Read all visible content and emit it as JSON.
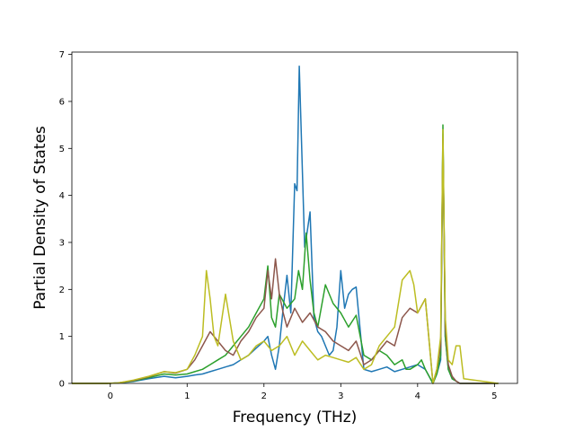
{
  "chart_data": {
    "type": "line",
    "title": "",
    "xlabel": "Frequency (THz)",
    "ylabel": "Partial Density of States",
    "xlim": [
      -0.5,
      5.3
    ],
    "ylim": [
      0,
      7.05
    ],
    "xticks": [
      0,
      1,
      2,
      3,
      4,
      5
    ],
    "yticks": [
      0,
      1,
      2,
      3,
      4,
      5,
      6,
      7
    ],
    "grid": false,
    "legend": "none",
    "series": [
      {
        "color": "#1f77b4",
        "x": [
          -0.5,
          -0.05,
          0.1,
          0.3,
          0.5,
          0.7,
          0.85,
          1.0,
          1.1,
          1.2,
          1.3,
          1.4,
          1.5,
          1.6,
          1.7,
          1.8,
          1.9,
          2.0,
          2.05,
          2.1,
          2.15,
          2.2,
          2.25,
          2.3,
          2.35,
          2.4,
          2.43,
          2.46,
          2.5,
          2.53,
          2.56,
          2.6,
          2.65,
          2.7,
          2.75,
          2.8,
          2.85,
          2.9,
          2.95,
          3.0,
          3.05,
          3.1,
          3.15,
          3.2,
          3.3,
          3.4,
          3.5,
          3.6,
          3.7,
          3.8,
          3.9,
          4.0,
          4.1,
          4.2,
          4.25,
          4.3,
          4.33,
          4.36,
          4.4,
          4.45,
          4.5,
          4.55,
          4.6,
          5.05
        ],
        "y": [
          0.0,
          0.0,
          0.01,
          0.04,
          0.1,
          0.15,
          0.12,
          0.15,
          0.18,
          0.2,
          0.25,
          0.3,
          0.35,
          0.4,
          0.5,
          0.6,
          0.75,
          0.9,
          1.0,
          0.6,
          0.3,
          0.8,
          1.6,
          2.3,
          1.5,
          4.25,
          4.1,
          6.75,
          4.5,
          2.9,
          3.2,
          3.65,
          1.4,
          1.1,
          1.0,
          0.8,
          0.6,
          0.7,
          1.2,
          2.4,
          1.6,
          1.9,
          2.0,
          2.05,
          0.3,
          0.25,
          0.3,
          0.35,
          0.25,
          0.3,
          0.35,
          0.4,
          0.3,
          0.0,
          0.2,
          0.5,
          5.3,
          1.0,
          0.3,
          0.1,
          0.05,
          0.0,
          0.0,
          0.0
        ]
      },
      {
        "color": "#2ca02c",
        "x": [
          -0.5,
          -0.05,
          0.1,
          0.3,
          0.5,
          0.7,
          0.85,
          1.0,
          1.1,
          1.2,
          1.3,
          1.4,
          1.5,
          1.6,
          1.7,
          1.8,
          1.9,
          2.0,
          2.05,
          2.1,
          2.15,
          2.2,
          2.3,
          2.4,
          2.45,
          2.5,
          2.55,
          2.6,
          2.65,
          2.7,
          2.8,
          2.9,
          3.0,
          3.1,
          3.2,
          3.3,
          3.4,
          3.5,
          3.6,
          3.7,
          3.8,
          3.85,
          3.9,
          4.0,
          4.05,
          4.1,
          4.2,
          4.25,
          4.3,
          4.33,
          4.36,
          4.4,
          4.45,
          4.5,
          4.55,
          4.6,
          5.05
        ],
        "y": [
          0.0,
          0.0,
          0.01,
          0.05,
          0.12,
          0.2,
          0.18,
          0.2,
          0.25,
          0.3,
          0.4,
          0.5,
          0.6,
          0.8,
          1.0,
          1.2,
          1.5,
          1.8,
          2.5,
          1.4,
          1.2,
          1.9,
          1.6,
          1.8,
          2.4,
          2.0,
          3.2,
          2.2,
          1.5,
          1.2,
          2.1,
          1.7,
          1.5,
          1.2,
          1.45,
          0.6,
          0.5,
          0.7,
          0.6,
          0.4,
          0.5,
          0.3,
          0.3,
          0.4,
          0.5,
          0.3,
          0.0,
          0.2,
          0.6,
          5.5,
          1.0,
          0.3,
          0.1,
          0.05,
          0.0,
          0.0,
          0.0
        ]
      },
      {
        "color": "#8c564b",
        "x": [
          -0.5,
          -0.05,
          0.1,
          0.3,
          0.5,
          0.7,
          0.85,
          1.0,
          1.1,
          1.2,
          1.3,
          1.4,
          1.5,
          1.6,
          1.7,
          1.8,
          1.9,
          2.0,
          2.05,
          2.1,
          2.15,
          2.2,
          2.25,
          2.3,
          2.4,
          2.5,
          2.6,
          2.7,
          2.8,
          2.9,
          3.0,
          3.1,
          3.2,
          3.3,
          3.4,
          3.5,
          3.6,
          3.7,
          3.8,
          3.9,
          4.0,
          4.1,
          4.2,
          4.25,
          4.3,
          4.33,
          4.36,
          4.4,
          4.45,
          4.5,
          4.55,
          4.6,
          5.05
        ],
        "y": [
          0.0,
          0.0,
          0.01,
          0.06,
          0.14,
          0.25,
          0.22,
          0.3,
          0.5,
          0.8,
          1.1,
          0.9,
          0.7,
          0.6,
          0.9,
          1.1,
          1.4,
          1.6,
          2.4,
          1.8,
          2.65,
          1.9,
          1.5,
          1.2,
          1.6,
          1.3,
          1.5,
          1.2,
          1.1,
          0.9,
          0.8,
          0.7,
          0.9,
          0.4,
          0.5,
          0.7,
          0.9,
          0.8,
          1.4,
          1.6,
          1.5,
          1.8,
          0.0,
          0.3,
          0.8,
          5.2,
          1.2,
          0.4,
          0.15,
          0.05,
          0.0,
          0.0,
          0.0
        ]
      },
      {
        "color": "#bcbd22",
        "x": [
          -0.5,
          -0.05,
          0.1,
          0.3,
          0.5,
          0.7,
          0.85,
          1.0,
          1.1,
          1.2,
          1.25,
          1.3,
          1.35,
          1.4,
          1.5,
          1.55,
          1.6,
          1.7,
          1.8,
          1.9,
          2.0,
          2.1,
          2.2,
          2.3,
          2.4,
          2.5,
          2.6,
          2.7,
          2.8,
          2.9,
          3.0,
          3.1,
          3.2,
          3.3,
          3.4,
          3.5,
          3.6,
          3.7,
          3.8,
          3.9,
          3.95,
          4.0,
          4.1,
          4.2,
          4.25,
          4.3,
          4.33,
          4.36,
          4.4,
          4.45,
          4.5,
          4.55,
          4.6,
          5.05
        ],
        "y": [
          0.0,
          0.0,
          0.01,
          0.07,
          0.15,
          0.25,
          0.23,
          0.3,
          0.6,
          1.0,
          2.4,
          1.8,
          1.0,
          0.8,
          1.9,
          1.4,
          0.9,
          0.5,
          0.6,
          0.8,
          0.9,
          0.7,
          0.8,
          1.0,
          0.6,
          0.9,
          0.7,
          0.5,
          0.6,
          0.55,
          0.5,
          0.45,
          0.55,
          0.3,
          0.4,
          0.8,
          1.0,
          1.2,
          2.2,
          2.4,
          2.1,
          1.5,
          1.8,
          0.0,
          0.3,
          1.0,
          5.4,
          1.4,
          0.5,
          0.4,
          0.8,
          0.8,
          0.1,
          0.0
        ]
      }
    ]
  }
}
